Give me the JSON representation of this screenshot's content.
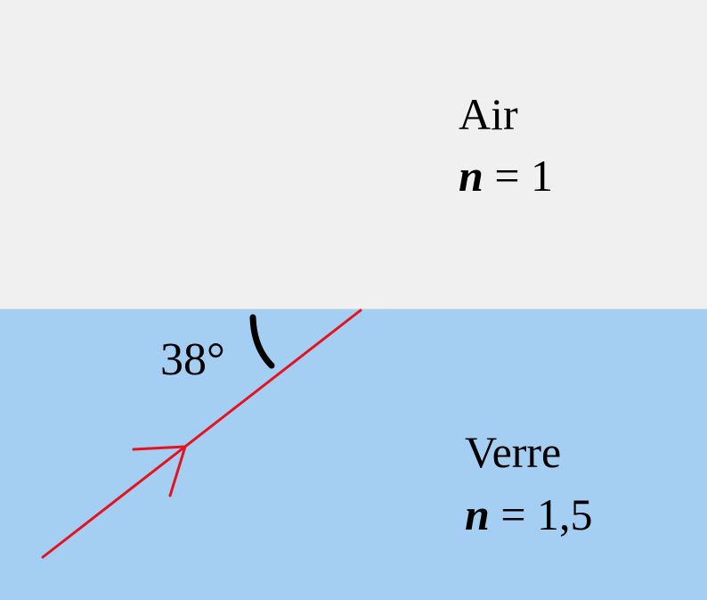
{
  "media": {
    "air": {
      "name": "Air",
      "index_symbol": "n",
      "index_value": "= 1",
      "color": "#f0f0f0"
    },
    "glass": {
      "name": "Verre",
      "index_symbol": "n",
      "index_value": "= 1,5",
      "color": "#a4cef2"
    }
  },
  "ray": {
    "color": "#e3141f",
    "direction": "towards the interface"
  },
  "angle": {
    "label": "38°",
    "arc_color": "#000000"
  }
}
